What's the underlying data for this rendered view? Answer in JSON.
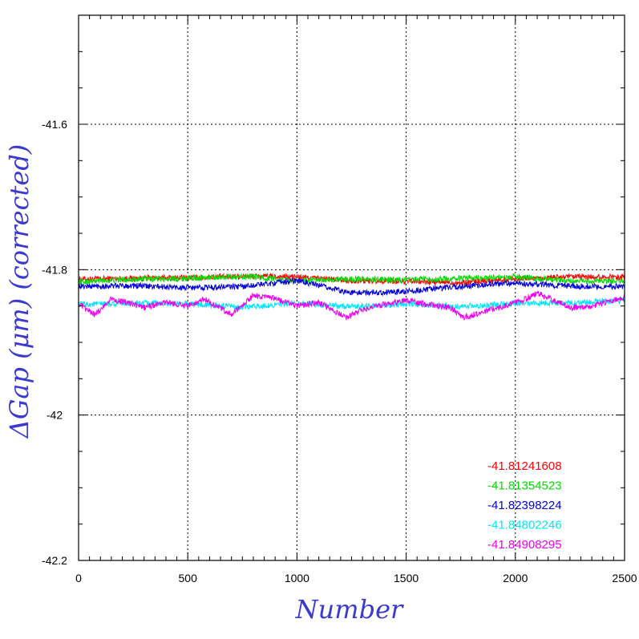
{
  "chart_data": {
    "type": "line",
    "xlabel": "Number",
    "ylabel": "ΔGap (μm) (corrected)",
    "xlim": [
      0,
      2500
    ],
    "ylim": [
      -42.2,
      -41.45
    ],
    "x_ticks": [
      0,
      500,
      1000,
      1500,
      2000,
      2500
    ],
    "x_tick_labels": [
      "0",
      "500",
      "1000",
      "1500",
      "2000",
      "2500"
    ],
    "y_ticks": [
      -42.2,
      -42.0,
      -41.8,
      -41.6
    ],
    "y_tick_labels": [
      "-42.2",
      "-42",
      "-41.8",
      "-41.6"
    ],
    "grid": true,
    "legend_position": "bottom-right",
    "series": [
      {
        "name": "-41.81241608",
        "color": "#ff0000",
        "x": [
          0,
          250,
          500,
          750,
          1000,
          1250,
          1500,
          1750,
          2000,
          2250,
          2500
        ],
        "y": [
          -41.813,
          -41.812,
          -41.811,
          -41.809,
          -41.81,
          -41.815,
          -41.816,
          -41.818,
          -41.812,
          -41.81,
          -41.81
        ]
      },
      {
        "name": "-41.81354523",
        "color": "#00dd00",
        "x": [
          0,
          250,
          500,
          750,
          1000,
          1250,
          1500,
          1750,
          2000,
          2250,
          2500
        ],
        "y": [
          -41.817,
          -41.813,
          -41.812,
          -41.809,
          -41.815,
          -41.813,
          -41.814,
          -41.812,
          -41.81,
          -41.816,
          -41.816
        ]
      },
      {
        "name": "-41.82398224",
        "color": "#0000dd",
        "x": [
          0,
          250,
          500,
          750,
          1000,
          1250,
          1500,
          1750,
          2000,
          2250,
          2500
        ],
        "y": [
          -41.823,
          -41.822,
          -41.825,
          -41.823,
          -41.815,
          -41.832,
          -41.83,
          -41.823,
          -41.818,
          -41.823,
          -41.823
        ]
      },
      {
        "name": "-41.84802246",
        "color": "#00e5ff",
        "x": [
          0,
          250,
          500,
          750,
          1000,
          1250,
          1500,
          1750,
          2000,
          2250,
          2500
        ],
        "y": [
          -41.848,
          -41.846,
          -41.847,
          -41.852,
          -41.846,
          -41.851,
          -41.847,
          -41.851,
          -41.846,
          -41.846,
          -41.842
        ]
      },
      {
        "name": "-41.84908295",
        "color": "#ee00ee",
        "x": [
          0,
          75,
          150,
          300,
          400,
          500,
          575,
          700,
          800,
          900,
          1000,
          1100,
          1225,
          1300,
          1400,
          1500,
          1600,
          1700,
          1760,
          1850,
          1950,
          2025,
          2100,
          2175,
          2250,
          2325,
          2400,
          2500
        ],
        "y": [
          -41.848,
          -41.862,
          -41.84,
          -41.852,
          -41.845,
          -41.85,
          -41.84,
          -41.862,
          -41.836,
          -41.84,
          -41.85,
          -41.845,
          -41.866,
          -41.855,
          -41.848,
          -41.842,
          -41.848,
          -41.852,
          -41.866,
          -41.858,
          -41.85,
          -41.843,
          -41.832,
          -41.842,
          -41.852,
          -41.852,
          -41.846,
          -41.838
        ]
      }
    ]
  }
}
